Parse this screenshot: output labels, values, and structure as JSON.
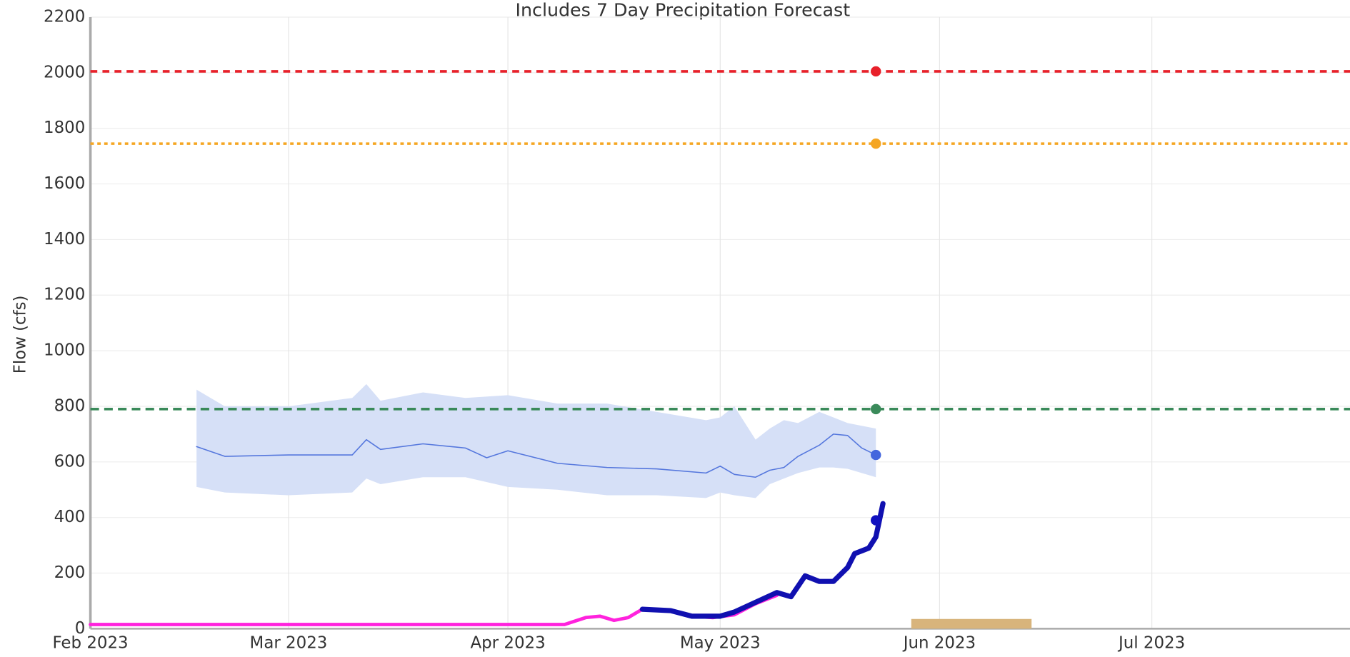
{
  "chart_data": {
    "type": "line",
    "title": "Includes 7 Day Precipitation Forecast",
    "y_label": "Flow (cfs)",
    "xlim": [
      "2023-02-01",
      "2023-07-29"
    ],
    "xticks": [
      {
        "value": "2023-02-01",
        "label": "Feb 2023"
      },
      {
        "value": "2023-03-01",
        "label": "Mar 2023"
      },
      {
        "value": "2023-04-01",
        "label": "Apr 2023"
      },
      {
        "value": "2023-05-01",
        "label": "May 2023"
      },
      {
        "value": "2023-06-01",
        "label": "Jun 2023"
      },
      {
        "value": "2023-07-01",
        "label": "Jul 2023"
      }
    ],
    "ylim": [
      0,
      2200
    ],
    "yticks": [
      0,
      200,
      400,
      600,
      800,
      1000,
      1200,
      1400,
      1600,
      1800,
      2000,
      2200
    ],
    "grid": true,
    "thresholds": [
      {
        "value": 2005,
        "color": "#e8202a",
        "dash": "8 6"
      },
      {
        "value": 1745,
        "color": "#f5a623",
        "dash": "4 4"
      },
      {
        "value": 790,
        "color": "#3a8a5a",
        "dash": "10 6"
      }
    ],
    "band": {
      "color": "#d6e0f7",
      "x": [
        "2023-02-16",
        "2023-02-20",
        "2023-03-01",
        "2023-03-10",
        "2023-03-12",
        "2023-03-14",
        "2023-03-20",
        "2023-03-26",
        "2023-04-01",
        "2023-04-08",
        "2023-04-15",
        "2023-04-22",
        "2023-04-29",
        "2023-05-01",
        "2023-05-03",
        "2023-05-06",
        "2023-05-08",
        "2023-05-10",
        "2023-05-12",
        "2023-05-15",
        "2023-05-17",
        "2023-05-19",
        "2023-05-21",
        "2023-05-23"
      ],
      "upper": [
        860,
        800,
        800,
        830,
        880,
        820,
        850,
        830,
        840,
        810,
        810,
        780,
        750,
        760,
        800,
        680,
        720,
        750,
        740,
        780,
        760,
        740,
        730,
        720
      ],
      "lower": [
        510,
        490,
        480,
        490,
        540,
        520,
        545,
        545,
        510,
        500,
        480,
        480,
        470,
        490,
        480,
        470,
        520,
        540,
        560,
        580,
        580,
        575,
        560,
        545
      ]
    },
    "series": [
      {
        "color": "#5577dd",
        "width": 1.3,
        "x": [
          "2023-02-16",
          "2023-02-20",
          "2023-03-01",
          "2023-03-10",
          "2023-03-12",
          "2023-03-14",
          "2023-03-20",
          "2023-03-26",
          "2023-03-29",
          "2023-04-01",
          "2023-04-08",
          "2023-04-15",
          "2023-04-22",
          "2023-04-29",
          "2023-05-01",
          "2023-05-03",
          "2023-05-06",
          "2023-05-08",
          "2023-05-10",
          "2023-05-12",
          "2023-05-15",
          "2023-05-17",
          "2023-05-19",
          "2023-05-21",
          "2023-05-23"
        ],
        "values": [
          655,
          620,
          625,
          625,
          680,
          645,
          665,
          650,
          615,
          640,
          595,
          580,
          575,
          560,
          585,
          555,
          545,
          570,
          580,
          620,
          660,
          700,
          695,
          650,
          625
        ]
      },
      {
        "color": "#ff22dd",
        "width": 4,
        "x": [
          "2023-02-01",
          "2023-03-01",
          "2023-04-09",
          "2023-04-12",
          "2023-04-14",
          "2023-04-16",
          "2023-04-18",
          "2023-04-20",
          "2023-04-24",
          "2023-04-27",
          "2023-04-30",
          "2023-05-03",
          "2023-05-06",
          "2023-05-09"
        ],
        "values": [
          15,
          15,
          15,
          40,
          45,
          30,
          40,
          70,
          65,
          45,
          40,
          50,
          90,
          120
        ]
      },
      {
        "color": "#1010b0",
        "width": 6,
        "x": [
          "2023-04-20",
          "2023-04-24",
          "2023-04-27",
          "2023-05-01",
          "2023-05-03",
          "2023-05-06",
          "2023-05-09",
          "2023-05-11",
          "2023-05-13",
          "2023-05-15",
          "2023-05-17",
          "2023-05-19",
          "2023-05-20",
          "2023-05-21",
          "2023-05-22",
          "2023-05-23",
          "2023-05-24"
        ],
        "values": [
          70,
          65,
          45,
          45,
          60,
          95,
          130,
          115,
          190,
          170,
          170,
          220,
          270,
          280,
          290,
          330,
          450
        ]
      }
    ],
    "points": [
      {
        "x": "2023-05-23",
        "y": 2005,
        "color": "#e8202a"
      },
      {
        "x": "2023-05-23",
        "y": 1745,
        "color": "#f5a623"
      },
      {
        "x": "2023-05-23",
        "y": 790,
        "color": "#3a8a5a"
      },
      {
        "x": "2023-05-23",
        "y": 625,
        "color": "#4466dd"
      },
      {
        "x": "2023-05-23",
        "y": 390,
        "color": "#1010c0"
      }
    ],
    "bars": [
      {
        "x0": "2023-05-28",
        "x1": "2023-06-14",
        "value": 35,
        "color": "#d8b47c"
      }
    ]
  }
}
